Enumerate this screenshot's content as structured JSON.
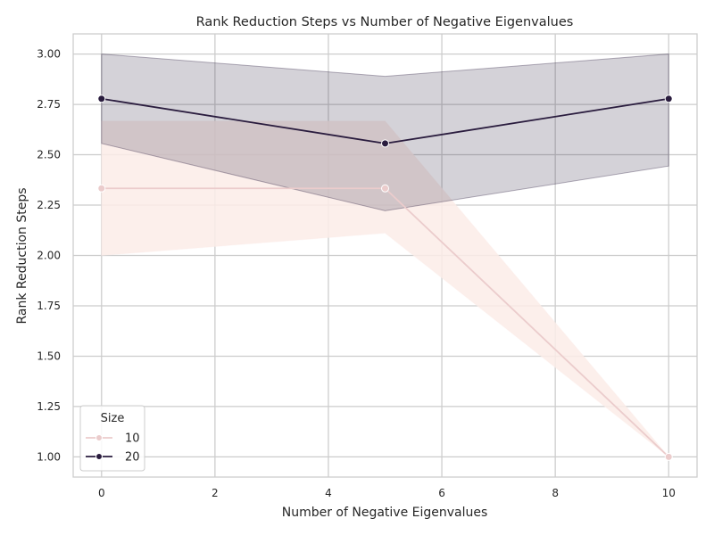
{
  "chart_data": {
    "type": "line",
    "title": "Rank Reduction Steps vs Number of Negative Eigenvalues",
    "xlabel": "Number of Negative Eigenvalues",
    "ylabel": "Rank Reduction Steps",
    "xlim": [
      -0.5,
      10.5
    ],
    "ylim": [
      0.9,
      3.1
    ],
    "xticks": [
      0,
      2,
      4,
      6,
      8,
      10
    ],
    "xtick_labels": [
      "0",
      "2",
      "4",
      "6",
      "8",
      "10"
    ],
    "yticks": [
      1.0,
      1.25,
      1.5,
      1.75,
      2.0,
      2.25,
      2.5,
      2.75,
      3.0
    ],
    "ytick_labels": [
      "1.00",
      "1.25",
      "1.50",
      "1.75",
      "2.00",
      "2.25",
      "2.50",
      "2.75",
      "3.00"
    ],
    "grid": true,
    "legend": {
      "title": "Size",
      "placement": "lower-left",
      "entries": [
        "10",
        "20"
      ]
    },
    "series": [
      {
        "name": "10",
        "color": "#ebcccc",
        "band_color": "#fbece8",
        "x": [
          0,
          5,
          10
        ],
        "y": [
          2.333,
          2.333,
          1.0
        ],
        "ci_low": [
          2.0,
          2.111,
          1.0
        ],
        "ci_high": [
          2.667,
          2.667,
          1.0
        ]
      },
      {
        "name": "20",
        "color": "#2a1c3e",
        "band_color": "#2a1c3e",
        "x": [
          0,
          5,
          10
        ],
        "y": [
          2.778,
          2.556,
          2.778
        ],
        "ci_low": [
          2.556,
          2.222,
          2.444
        ],
        "ci_high": [
          3.0,
          2.889,
          3.0
        ]
      }
    ]
  }
}
